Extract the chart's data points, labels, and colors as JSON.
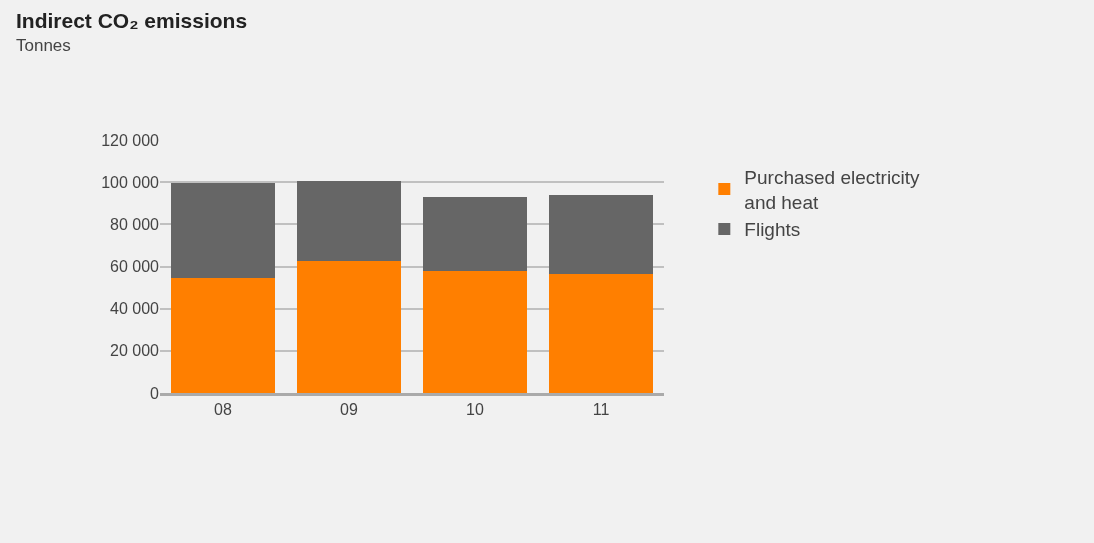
{
  "chart_data": {
    "type": "bar",
    "title": "Indirect CO₂ emissions",
    "subtitle": "Tonnes",
    "categories": [
      "08",
      "09",
      "10",
      "11"
    ],
    "stacked": true,
    "series": [
      {
        "name": "Purchased electricity and heat",
        "color": "#ff7f00",
        "values": [
          54500,
          62500,
          58000,
          56500
        ]
      },
      {
        "name": "Flights",
        "color": "#666666",
        "values": [
          45000,
          38000,
          35000,
          37500
        ]
      }
    ],
    "ylim": [
      0,
      120000
    ],
    "yticks": [
      {
        "value": 0,
        "label": "0"
      },
      {
        "value": 20000,
        "label": "20 000"
      },
      {
        "value": 40000,
        "label": "40 000"
      },
      {
        "value": 60000,
        "label": "60 000"
      },
      {
        "value": 80000,
        "label": "80 000"
      },
      {
        "value": 100000,
        "label": "100 000"
      },
      {
        "value": 120000,
        "label": "120 000"
      }
    ],
    "grid": "y",
    "legend": "right"
  }
}
